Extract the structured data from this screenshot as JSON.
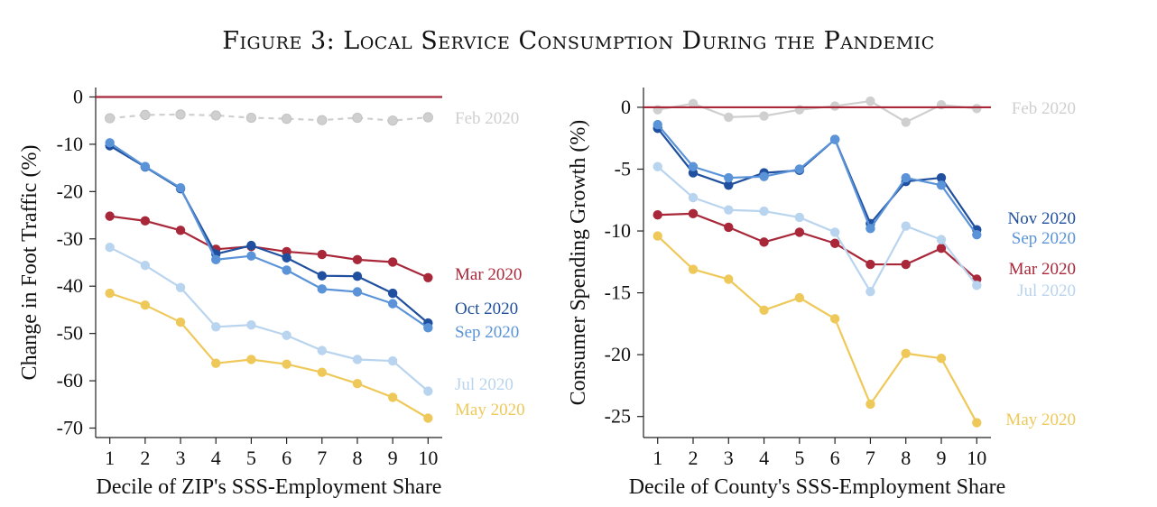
{
  "figure": {
    "title": "Figure 3: Local Service Consumption During the Pandemic"
  },
  "chart_data": [
    {
      "type": "line",
      "xlabel": "Decile of ZIP's SSS-Employment Share",
      "ylabel": "Change in Foot Traffic (%)",
      "x": [
        1,
        2,
        3,
        4,
        5,
        6,
        7,
        8,
        9,
        10
      ],
      "xticks": [
        "1",
        "2",
        "3",
        "4",
        "5",
        "6",
        "7",
        "8",
        "9",
        "10"
      ],
      "xlim": [
        0.6,
        10.4
      ],
      "ylim": [
        -72,
        2
      ],
      "yticks": [
        0,
        -10,
        -20,
        -30,
        -40,
        -50,
        -60,
        -70
      ],
      "ytick_labels": [
        "0",
        "-10",
        "-20",
        "-30",
        "-40",
        "-50",
        "-60",
        "-70"
      ],
      "reference_line": {
        "y": 0,
        "color": "#a8283a"
      },
      "series": [
        {
          "name": "Feb 2020",
          "label": "Feb 2020",
          "color": "#cfcfcf",
          "dashed": true,
          "values": [
            -4.5,
            -3.8,
            -3.7,
            -3.9,
            -4.4,
            -4.6,
            -4.9,
            -4.4,
            -5.0,
            -4.3
          ]
        },
        {
          "name": "Mar 2020",
          "label": "Mar 2020",
          "color": "#a8283a",
          "dashed": false,
          "values": [
            -25.2,
            -26.2,
            -28.2,
            -32.2,
            -31.6,
            -32.7,
            -33.3,
            -34.4,
            -34.9,
            -38.2
          ]
        },
        {
          "name": "Oct 2020",
          "label": "Oct 2020",
          "color": "#1f4f9e",
          "dashed": false,
          "values": [
            -10.3,
            -14.8,
            -19.4,
            -33.2,
            -31.4,
            -34.0,
            -37.8,
            -37.9,
            -41.5,
            -47.8
          ]
        },
        {
          "name": "Sep 2020",
          "label": "Sep 2020",
          "color": "#5a93d8",
          "dashed": false,
          "values": [
            -9.7,
            -14.7,
            -19.2,
            -34.4,
            -33.6,
            -36.6,
            -40.6,
            -41.2,
            -43.7,
            -48.8
          ]
        },
        {
          "name": "Jul 2020",
          "label": "Jul 2020",
          "color": "#b9d4ee",
          "dashed": false,
          "values": [
            -31.8,
            -35.6,
            -40.3,
            -48.6,
            -48.2,
            -50.4,
            -53.6,
            -55.5,
            -55.8,
            -62.2
          ]
        },
        {
          "name": "May 2020",
          "label": "May 2020",
          "color": "#eec95a",
          "dashed": false,
          "values": [
            -41.5,
            -44.0,
            -47.6,
            -56.3,
            -55.5,
            -56.5,
            -58.2,
            -60.6,
            -63.5,
            -67.9
          ]
        }
      ]
    },
    {
      "type": "line",
      "xlabel": "Decile of County's SSS-Employment Share",
      "ylabel": "Consumer Spending Growth (%)",
      "x": [
        1,
        2,
        3,
        4,
        5,
        6,
        7,
        8,
        9,
        10
      ],
      "xticks": [
        "1",
        "2",
        "3",
        "4",
        "5",
        "6",
        "7",
        "8",
        "9",
        "10"
      ],
      "xlim": [
        0.6,
        10.4
      ],
      "ylim": [
        -26.7,
        1.6
      ],
      "yticks": [
        0,
        -5,
        -10,
        -15,
        -20,
        -25
      ],
      "ytick_labels": [
        "0",
        "-5",
        "-10",
        "-15",
        "-20",
        "-25"
      ],
      "reference_line": {
        "y": 0,
        "color": "#a8283a"
      },
      "series": [
        {
          "name": "Feb 2020",
          "label": "Feb 2020",
          "color": "#cfcfcf",
          "dashed": false,
          "values": [
            -0.2,
            0.3,
            -0.8,
            -0.7,
            -0.2,
            0.1,
            0.5,
            -1.2,
            0.2,
            -0.1
          ]
        },
        {
          "name": "Nov 2020",
          "label": "Nov 2020",
          "color": "#1f4f9e",
          "dashed": false,
          "values": [
            -1.7,
            -5.3,
            -6.3,
            -5.3,
            -5.1,
            -2.6,
            -9.4,
            -6.0,
            -5.7,
            -9.9
          ]
        },
        {
          "name": "Sep 2020",
          "label": "Sep 2020",
          "color": "#5a93d8",
          "dashed": false,
          "values": [
            -1.4,
            -4.8,
            -5.7,
            -5.6,
            -5.0,
            -2.6,
            -9.8,
            -5.7,
            -6.3,
            -10.3
          ]
        },
        {
          "name": "Mar 2020",
          "label": "Mar 2020",
          "color": "#a8283a",
          "dashed": false,
          "values": [
            -8.7,
            -8.6,
            -9.7,
            -10.9,
            -10.1,
            -11.0,
            -12.7,
            -12.7,
            -11.4,
            -13.9
          ]
        },
        {
          "name": "Jul 2020",
          "label": "Jul 2020",
          "color": "#b9d4ee",
          "dashed": false,
          "values": [
            -4.8,
            -7.3,
            -8.3,
            -8.4,
            -8.9,
            -10.1,
            -14.9,
            -9.6,
            -10.7,
            -14.4
          ]
        },
        {
          "name": "May 2020",
          "label": "May 2020",
          "color": "#eec95a",
          "dashed": false,
          "values": [
            -10.4,
            -13.1,
            -13.9,
            -16.4,
            -15.4,
            -17.1,
            -24.0,
            -19.9,
            -20.3,
            -25.5
          ]
        }
      ]
    }
  ]
}
